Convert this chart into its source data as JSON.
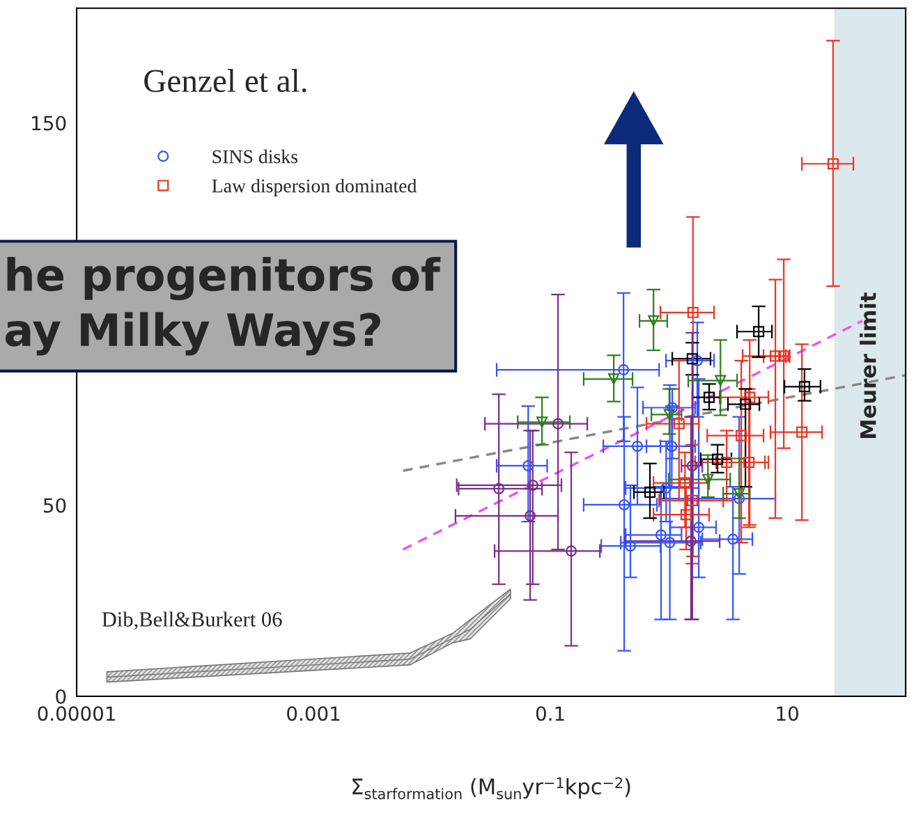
{
  "chart_data": {
    "type": "scatter",
    "xlabel": "Σ$_{starformation}$ (M$_{sun}$yr$^{−1}$kpc$^{−2}$)",
    "log": "x",
    "grid": false,
    "legend": "top left",
    "xlim": [
      1e-05,
      100
    ],
    "xticks": [
      {
        "value": 1e-05,
        "label": "0.00001"
      },
      {
        "value": 0.001,
        "label": "0.001"
      },
      {
        "value": 0.1,
        "label": "0.1"
      },
      10
    ],
    "ylim": [
      0,
      180
    ],
    "yticks": [
      0,
      50,
      150
    ],
    "bands": [
      {
        "axis": "x",
        "from": 25,
        "to": 100,
        "label": "Meurer limit",
        "color": "#dce9ec"
      }
    ],
    "annotations": [
      "Genzel et al.",
      "he progenitors of\nay Milky Ways?",
      "Dib,Bell&Burkert 06"
    ],
    "series": [
      {
        "type": "line",
        "color": "#777777",
        "x": [
          1.8e-05,
          0.0065,
          0.015,
          0.021,
          0.046
        ],
        "lower": [
          3.7,
          8.2,
          14,
          15,
          25.5
        ],
        "upper": [
          6.4,
          11.3,
          16.5,
          20,
          28
        ],
        "values": [
          5,
          9.7,
          15.2,
          17.5,
          26.8
        ]
      },
      {
        "type": "line",
        "color": "#888888",
        "line_style": "dashed",
        "marker": "none",
        "x": [
          0.0057,
          100
        ],
        "values": [
          59,
          84
        ]
      },
      {
        "type": "line",
        "color": "#ee55ee",
        "line_style": "dashed",
        "marker": "none",
        "x": [
          0.0057,
          43
        ],
        "values": [
          38.4,
          98.2
        ]
      },
      {
        "name": "SINS disks",
        "color": "#3355ff",
        "marker": "circle",
        "x": [
          0.415,
          0.065,
          0.543,
          1.06,
          0.42,
          0.474,
          0.86,
          1.02,
          1.79,
          3.48,
          3.93,
          1.07,
          1.74,
          0.95
        ],
        "values": [
          85.4,
          60.3,
          65.4,
          65.4,
          50.1,
          39.3,
          42.2,
          40.2,
          44.2,
          41.1,
          51.7,
          75.5,
          87.8,
          54.5
        ],
        "xerrors": [
          [
            0.0352,
            0.828
          ],
          [
            0.0352,
            0.094
          ],
          [
            0.28,
            0.85
          ],
          [
            0.648,
            1.67
          ],
          [
            0.191,
            0.794
          ],
          [
            0.269,
            0.85
          ],
          [
            0.432,
            1.28
          ],
          [
            0.393,
            1.86
          ],
          [
            1.03,
            2.51
          ],
          [
            1.92,
            5.08
          ],
          [
            0.85,
            7.94
          ],
          [
            0.606,
            1.67
          ],
          [
            0.947,
            2.41
          ],
          [
            0.432,
            1.79
          ]
        ],
        "errors": [
          [
            66.7,
            105.5
          ],
          [
            45.7,
            75.9
          ],
          [
            50.1,
            80.8
          ],
          [
            54.8,
            75.9
          ],
          [
            11.9,
            73.1
          ],
          [
            31.1,
            55.2
          ],
          [
            20.1,
            54.8
          ],
          [
            20.1,
            81.4
          ],
          [
            31.1,
            83
          ],
          [
            20.1,
            54.8
          ],
          [
            32,
            73.1
          ],
          [
            62.2,
            80.4
          ],
          [
            73.1,
            97.8
          ],
          [
            45.7,
            66.7
          ]
        ]
      },
      {
        "name": "Law dispersion dominated",
        "color": "#ee3322",
        "marker": "square",
        "x": [
          24.4,
          1.6,
          7.94,
          9.35,
          4.82,
          13.3,
          4.09,
          1.22,
          3.08,
          4.75,
          1.37,
          1.58,
          1.4
        ],
        "values": [
          139.3,
          100.4,
          89,
          89,
          78.2,
          69.1,
          68.2,
          71.3,
          61.2,
          61.2,
          55.8,
          51.2,
          47.5
        ],
        "xerrors": [
          [
            13.3,
            36.2
          ],
          [
            0.85,
            2.41
          ],
          [
            4.2,
            9.73
          ],
          [
            6.31,
            10.5
          ],
          [
            2.69,
            6.93
          ],
          [
            7.22,
            19.7
          ],
          [
            2.11,
            6.31
          ],
          [
            0.648,
            1.79
          ],
          [
            1.67,
            6.49
          ],
          [
            2.51,
            6.93
          ],
          [
            0.743,
            2.19
          ],
          [
            0.828,
            2.88
          ],
          [
            0.743,
            2.19
          ]
        ],
        "errors": [
          [
            107.3,
            171.5
          ],
          [
            36.6,
            125.4
          ],
          [
            46.6,
            109
          ],
          [
            64.9,
            114.3
          ],
          [
            44.8,
            93.2
          ],
          [
            46.1,
            92.1
          ],
          [
            40.2,
            87.8
          ],
          [
            51.2,
            87.8
          ],
          [
            51.2,
            69.5
          ],
          [
            44.2,
            80.4
          ],
          [
            44.2,
            63.8
          ],
          [
            34.7,
            65.8
          ],
          [
            38.4,
            54.8
          ]
        ]
      },
      {
        "color": "#000000",
        "marker": "square",
        "x": [
          5.74,
          1.58,
          14,
          2.19,
          4.44,
          2.58,
          0.693
        ],
        "values": [
          95.4,
          88.3,
          81,
          78.2,
          76.4,
          62,
          53.4
        ],
        "xerrors": [
          [
            3.77,
            7.43
          ],
          [
            1.07,
            2.25
          ],
          [
            9.48,
            19.1
          ],
          [
            1.58,
            2.73
          ],
          [
            3.16,
            5.82
          ],
          [
            1.86,
            3.38
          ],
          [
            0.508,
            0.91
          ]
        ],
        "errors": [
          [
            88.7,
            102
          ],
          [
            84.1,
            92.5
          ],
          [
            77.3,
            85.6
          ],
          [
            75,
            81.7
          ],
          [
            54.8,
            80.4
          ],
          [
            58.5,
            65.8
          ],
          [
            46.6,
            60.9
          ]
        ]
      },
      {
        "color": "#2e7d1e",
        "marker": "triangle",
        "x": [
          0.743,
          0.343,
          0.085,
          2.73,
          1.01,
          2.14,
          3.93
        ],
        "values": [
          98.2,
          83,
          71.7,
          82.6,
          73.7,
          56.7,
          53
        ],
        "xerrors": [
          [
            0.566,
            0.97
          ],
          [
            0.191,
            0.494
          ],
          [
            0.053,
            0.146
          ],
          [
            1.46,
            3.77
          ],
          [
            0.713,
            1.28
          ],
          [
            1.0,
            3.3
          ],
          [
            2.88,
            4.82
          ]
        ],
        "errors": [
          [
            90.5,
            106.4
          ],
          [
            77.1,
            89.2
          ],
          [
            65.8,
            78.2
          ],
          [
            73.5,
            93.2
          ],
          [
            68.6,
            80.4
          ],
          [
            52.1,
            63.1
          ],
          [
            46.6,
            62.2
          ]
        ]
      },
      {
        "color": "#7b2d8b",
        "marker": "circle",
        "x": [
          0.116,
          0.0367,
          0.071,
          0.0675,
          0.15,
          1.58,
          1.54
        ],
        "values": [
          71.3,
          54.3,
          55.2,
          47.2,
          38,
          60.3,
          40.6
        ],
        "xerrors": [
          [
            0.028,
            0.205
          ],
          [
            0.0168,
            0.085
          ],
          [
            0.0162,
            0.124
          ],
          [
            0.0158,
            0.116
          ],
          [
            0.0338,
            0.262
          ],
          [
            1.28,
            1.92
          ],
          [
            0.432,
            2.69
          ]
        ],
        "errors": [
          [
            38.4,
            105.1
          ],
          [
            29.3,
            79
          ],
          [
            29.3,
            69.5
          ],
          [
            25.2,
            69.5
          ],
          [
            13.2,
            63.8
          ],
          [
            20.1,
            95.1
          ],
          [
            20.1,
            73.1
          ]
        ]
      }
    ]
  }
}
